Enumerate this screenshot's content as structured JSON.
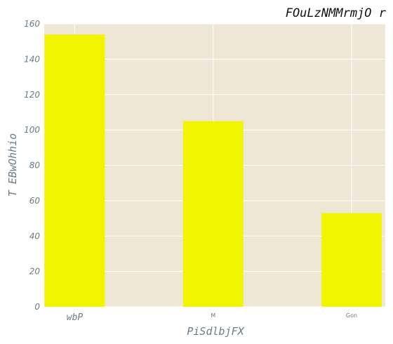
{
  "chart_data": {
    "type": "bar",
    "title": "FOuLzNMMrmjO r",
    "xlabel": "PiSdlbjFX",
    "ylabel": "T EBwOhhio",
    "categories": [
      "wbP",
      "M",
      "Gon"
    ],
    "values": [
      154,
      105,
      53
    ],
    "ylim": [
      0,
      160
    ],
    "yticks": [
      0,
      20,
      40,
      60,
      80,
      100,
      120,
      140,
      160
    ],
    "grid": true,
    "colors": {
      "bar": "#f2f500",
      "plot_background": "#efe7d5",
      "grid": "#ffffff"
    }
  }
}
